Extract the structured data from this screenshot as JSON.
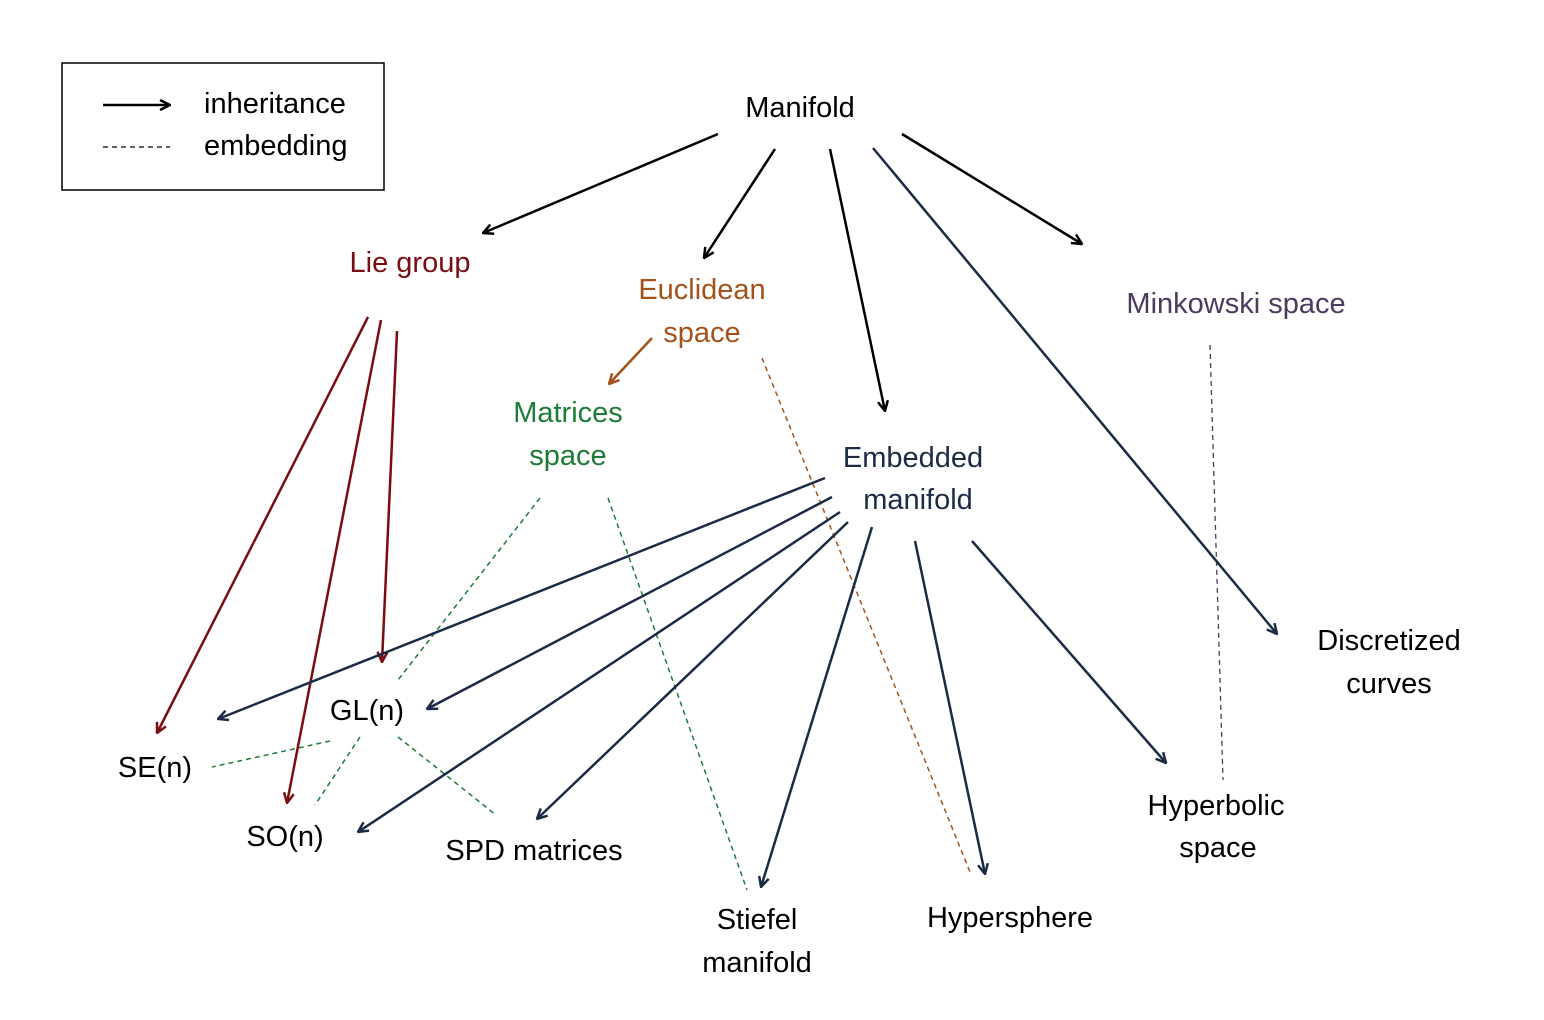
{
  "colors": {
    "black": "#000000",
    "lie_group": "#7a0d12",
    "euclidean": "#a4521a",
    "matrices": "#1e7a37",
    "embedded": "#1c2b45",
    "minkowski": "#4a3a5e"
  },
  "legend": {
    "inheritance_label": "inheritance",
    "embedding_label": "embedding"
  },
  "nodes": {
    "manifold": "Manifold",
    "lie_group": "Lie group",
    "euclidean_1": "Euclidean",
    "euclidean_2": "space",
    "minkowski": "Minkowski space",
    "matrices_1": "Matrices",
    "matrices_2": "space",
    "embedded_1": "Embedded",
    "embedded_2": "manifold",
    "discretized_1": "Discretized",
    "discretized_2": "curves",
    "se_n": "SE(n)",
    "gl_n": "GL(n)",
    "so_n": "SO(n)",
    "spd": "SPD matrices",
    "stiefel_1": "Stiefel",
    "stiefel_2": "manifold",
    "hypersphere": "Hypersphere",
    "hyperbolic_1": "Hyperbolic",
    "hyperbolic_2": "space"
  }
}
